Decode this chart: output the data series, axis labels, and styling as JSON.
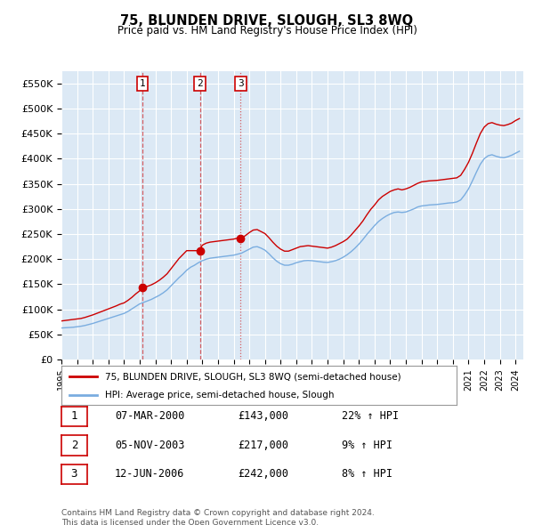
{
  "title": "75, BLUNDEN DRIVE, SLOUGH, SL3 8WQ",
  "subtitle": "Price paid vs. HM Land Registry's House Price Index (HPI)",
  "ylim": [
    0,
    575000
  ],
  "yticks": [
    0,
    50000,
    100000,
    150000,
    200000,
    250000,
    300000,
    350000,
    400000,
    450000,
    500000,
    550000
  ],
  "ytick_labels": [
    "£0",
    "£50K",
    "£100K",
    "£150K",
    "£200K",
    "£250K",
    "£300K",
    "£350K",
    "£400K",
    "£450K",
    "£500K",
    "£550K"
  ],
  "plot_bg_color": "#dce9f5",
  "grid_color": "#ffffff",
  "sale_color": "#cc0000",
  "hpi_color": "#7aade0",
  "sale_dates": [
    2000.19,
    2003.84,
    2006.45
  ],
  "sale_prices": [
    143000,
    217000,
    242000
  ],
  "markers": [
    {
      "num": 1,
      "date_str": "07-MAR-2000",
      "price": "£143,000",
      "pct": "22% ↑ HPI"
    },
    {
      "num": 2,
      "date_str": "05-NOV-2003",
      "price": "£217,000",
      "pct": "9% ↑ HPI"
    },
    {
      "num": 3,
      "date_str": "12-JUN-2006",
      "price": "£242,000",
      "pct": "8% ↑ HPI"
    }
  ],
  "legend_entries": [
    "75, BLUNDEN DRIVE, SLOUGH, SL3 8WQ (semi-detached house)",
    "HPI: Average price, semi-detached house, Slough"
  ],
  "footer": "Contains HM Land Registry data © Crown copyright and database right 2024.\nThis data is licensed under the Open Government Licence v3.0.",
  "xmin": 1995.0,
  "xmax": 2024.5,
  "hpi_data_x": [
    1995.0,
    1995.25,
    1995.5,
    1995.75,
    1996.0,
    1996.25,
    1996.5,
    1996.75,
    1997.0,
    1997.25,
    1997.5,
    1997.75,
    1998.0,
    1998.25,
    1998.5,
    1998.75,
    1999.0,
    1999.25,
    1999.5,
    1999.75,
    2000.0,
    2000.25,
    2000.5,
    2000.75,
    2001.0,
    2001.25,
    2001.5,
    2001.75,
    2002.0,
    2002.25,
    2002.5,
    2002.75,
    2003.0,
    2003.25,
    2003.5,
    2003.75,
    2004.0,
    2004.25,
    2004.5,
    2004.75,
    2005.0,
    2005.25,
    2005.5,
    2005.75,
    2006.0,
    2006.25,
    2006.5,
    2006.75,
    2007.0,
    2007.25,
    2007.5,
    2007.75,
    2008.0,
    2008.25,
    2008.5,
    2008.75,
    2009.0,
    2009.25,
    2009.5,
    2009.75,
    2010.0,
    2010.25,
    2010.5,
    2010.75,
    2011.0,
    2011.25,
    2011.5,
    2011.75,
    2012.0,
    2012.25,
    2012.5,
    2012.75,
    2013.0,
    2013.25,
    2013.5,
    2013.75,
    2014.0,
    2014.25,
    2014.5,
    2014.75,
    2015.0,
    2015.25,
    2015.5,
    2015.75,
    2016.0,
    2016.25,
    2016.5,
    2016.75,
    2017.0,
    2017.25,
    2017.5,
    2017.75,
    2018.0,
    2018.25,
    2018.5,
    2018.75,
    2019.0,
    2019.25,
    2019.5,
    2019.75,
    2020.0,
    2020.25,
    2020.5,
    2020.75,
    2021.0,
    2021.25,
    2021.5,
    2021.75,
    2022.0,
    2022.25,
    2022.5,
    2022.75,
    2023.0,
    2023.25,
    2023.5,
    2023.75,
    2024.0,
    2024.25
  ],
  "hpi_data_y": [
    63000,
    63500,
    64000,
    64500,
    65500,
    66500,
    68000,
    70000,
    72000,
    74500,
    77000,
    79500,
    82000,
    84500,
    87000,
    89500,
    92000,
    96000,
    101000,
    106000,
    111000,
    114000,
    117000,
    120000,
    124000,
    128000,
    133000,
    139000,
    147000,
    155000,
    163000,
    170000,
    178000,
    184000,
    188000,
    193000,
    197000,
    200000,
    202000,
    203000,
    204000,
    205000,
    206000,
    207000,
    208000,
    210000,
    212000,
    216000,
    220000,
    224000,
    225000,
    222000,
    218000,
    211000,
    203000,
    196000,
    191000,
    188000,
    188000,
    190000,
    193000,
    195000,
    197000,
    197500,
    197000,
    196000,
    195000,
    194000,
    193500,
    195000,
    197000,
    200000,
    204000,
    209000,
    215000,
    222000,
    230000,
    239000,
    249000,
    258000,
    267000,
    275000,
    281000,
    286000,
    290000,
    293000,
    294000,
    293000,
    294000,
    297000,
    300000,
    304000,
    306000,
    307000,
    308000,
    308500,
    309000,
    310000,
    311000,
    312000,
    312500,
    314000,
    318000,
    328000,
    340000,
    356000,
    373000,
    389000,
    400000,
    406000,
    408000,
    405000,
    403000,
    402000,
    404000,
    407000,
    411000,
    415000
  ],
  "sale_proj_x": [
    1995.0,
    1995.25,
    1995.5,
    1995.75,
    1996.0,
    1996.25,
    1996.5,
    1996.75,
    1997.0,
    1997.25,
    1997.5,
    1997.75,
    1998.0,
    1998.25,
    1998.5,
    1998.75,
    1999.0,
    1999.25,
    1999.5,
    1999.75,
    2000.0,
    2000.19,
    2000.25,
    2000.5,
    2000.75,
    2001.0,
    2001.25,
    2001.5,
    2001.75,
    2002.0,
    2002.25,
    2002.5,
    2002.75,
    2003.0,
    2003.25,
    2003.5,
    2003.84,
    2004.0,
    2004.25,
    2004.5,
    2004.75,
    2005.0,
    2005.25,
    2005.5,
    2005.75,
    2006.0,
    2006.25,
    2006.45,
    2006.5,
    2006.75,
    2007.0,
    2007.25,
    2007.5,
    2007.75,
    2008.0,
    2008.25,
    2008.5,
    2008.75,
    2009.0,
    2009.25,
    2009.5,
    2009.75,
    2010.0,
    2010.25,
    2010.5,
    2010.75,
    2011.0,
    2011.25,
    2011.5,
    2011.75,
    2012.0,
    2012.25,
    2012.5,
    2012.75,
    2013.0,
    2013.25,
    2013.5,
    2013.75,
    2014.0,
    2014.25,
    2014.5,
    2014.75,
    2015.0,
    2015.25,
    2015.5,
    2015.75,
    2016.0,
    2016.25,
    2016.5,
    2016.75,
    2017.0,
    2017.25,
    2017.5,
    2017.75,
    2018.0,
    2018.25,
    2018.5,
    2018.75,
    2019.0,
    2019.25,
    2019.5,
    2019.75,
    2020.0,
    2020.25,
    2020.5,
    2020.75,
    2021.0,
    2021.25,
    2021.5,
    2021.75,
    2022.0,
    2022.25,
    2022.5,
    2022.75,
    2023.0,
    2023.25,
    2023.5,
    2023.75,
    2024.0,
    2024.25
  ],
  "sale_proj_y": [
    77000,
    78000,
    79000,
    80000,
    81000,
    82000,
    84000,
    86500,
    89000,
    92000,
    95000,
    98000,
    101000,
    104000,
    107000,
    110500,
    113000,
    118000,
    124000,
    131000,
    137000,
    143000,
    143000,
    146000,
    149000,
    153000,
    158000,
    164000,
    171000,
    181000,
    191000,
    201000,
    209000,
    217000,
    217000,
    217000,
    217000,
    228000,
    232000,
    234000,
    235000,
    236000,
    237000,
    238000,
    239000,
    240000,
    242000,
    242000,
    242000,
    247000,
    253000,
    258000,
    259000,
    255000,
    251000,
    243000,
    234000,
    226000,
    220000,
    216000,
    216000,
    219000,
    222000,
    225000,
    226000,
    227000,
    226000,
    225000,
    224000,
    223000,
    222000,
    224000,
    227000,
    231000,
    235000,
    240000,
    248000,
    257000,
    266000,
    276000,
    288000,
    299000,
    308000,
    318000,
    325000,
    330000,
    335000,
    338000,
    340000,
    338000,
    340000,
    343000,
    347000,
    351000,
    354000,
    355000,
    356000,
    356500,
    357000,
    358000,
    359000,
    360000,
    361000,
    362000,
    367000,
    379000,
    393000,
    411000,
    431000,
    450000,
    463000,
    470000,
    472000,
    469000,
    467000,
    466000,
    468000,
    471000,
    476000,
    480000
  ]
}
